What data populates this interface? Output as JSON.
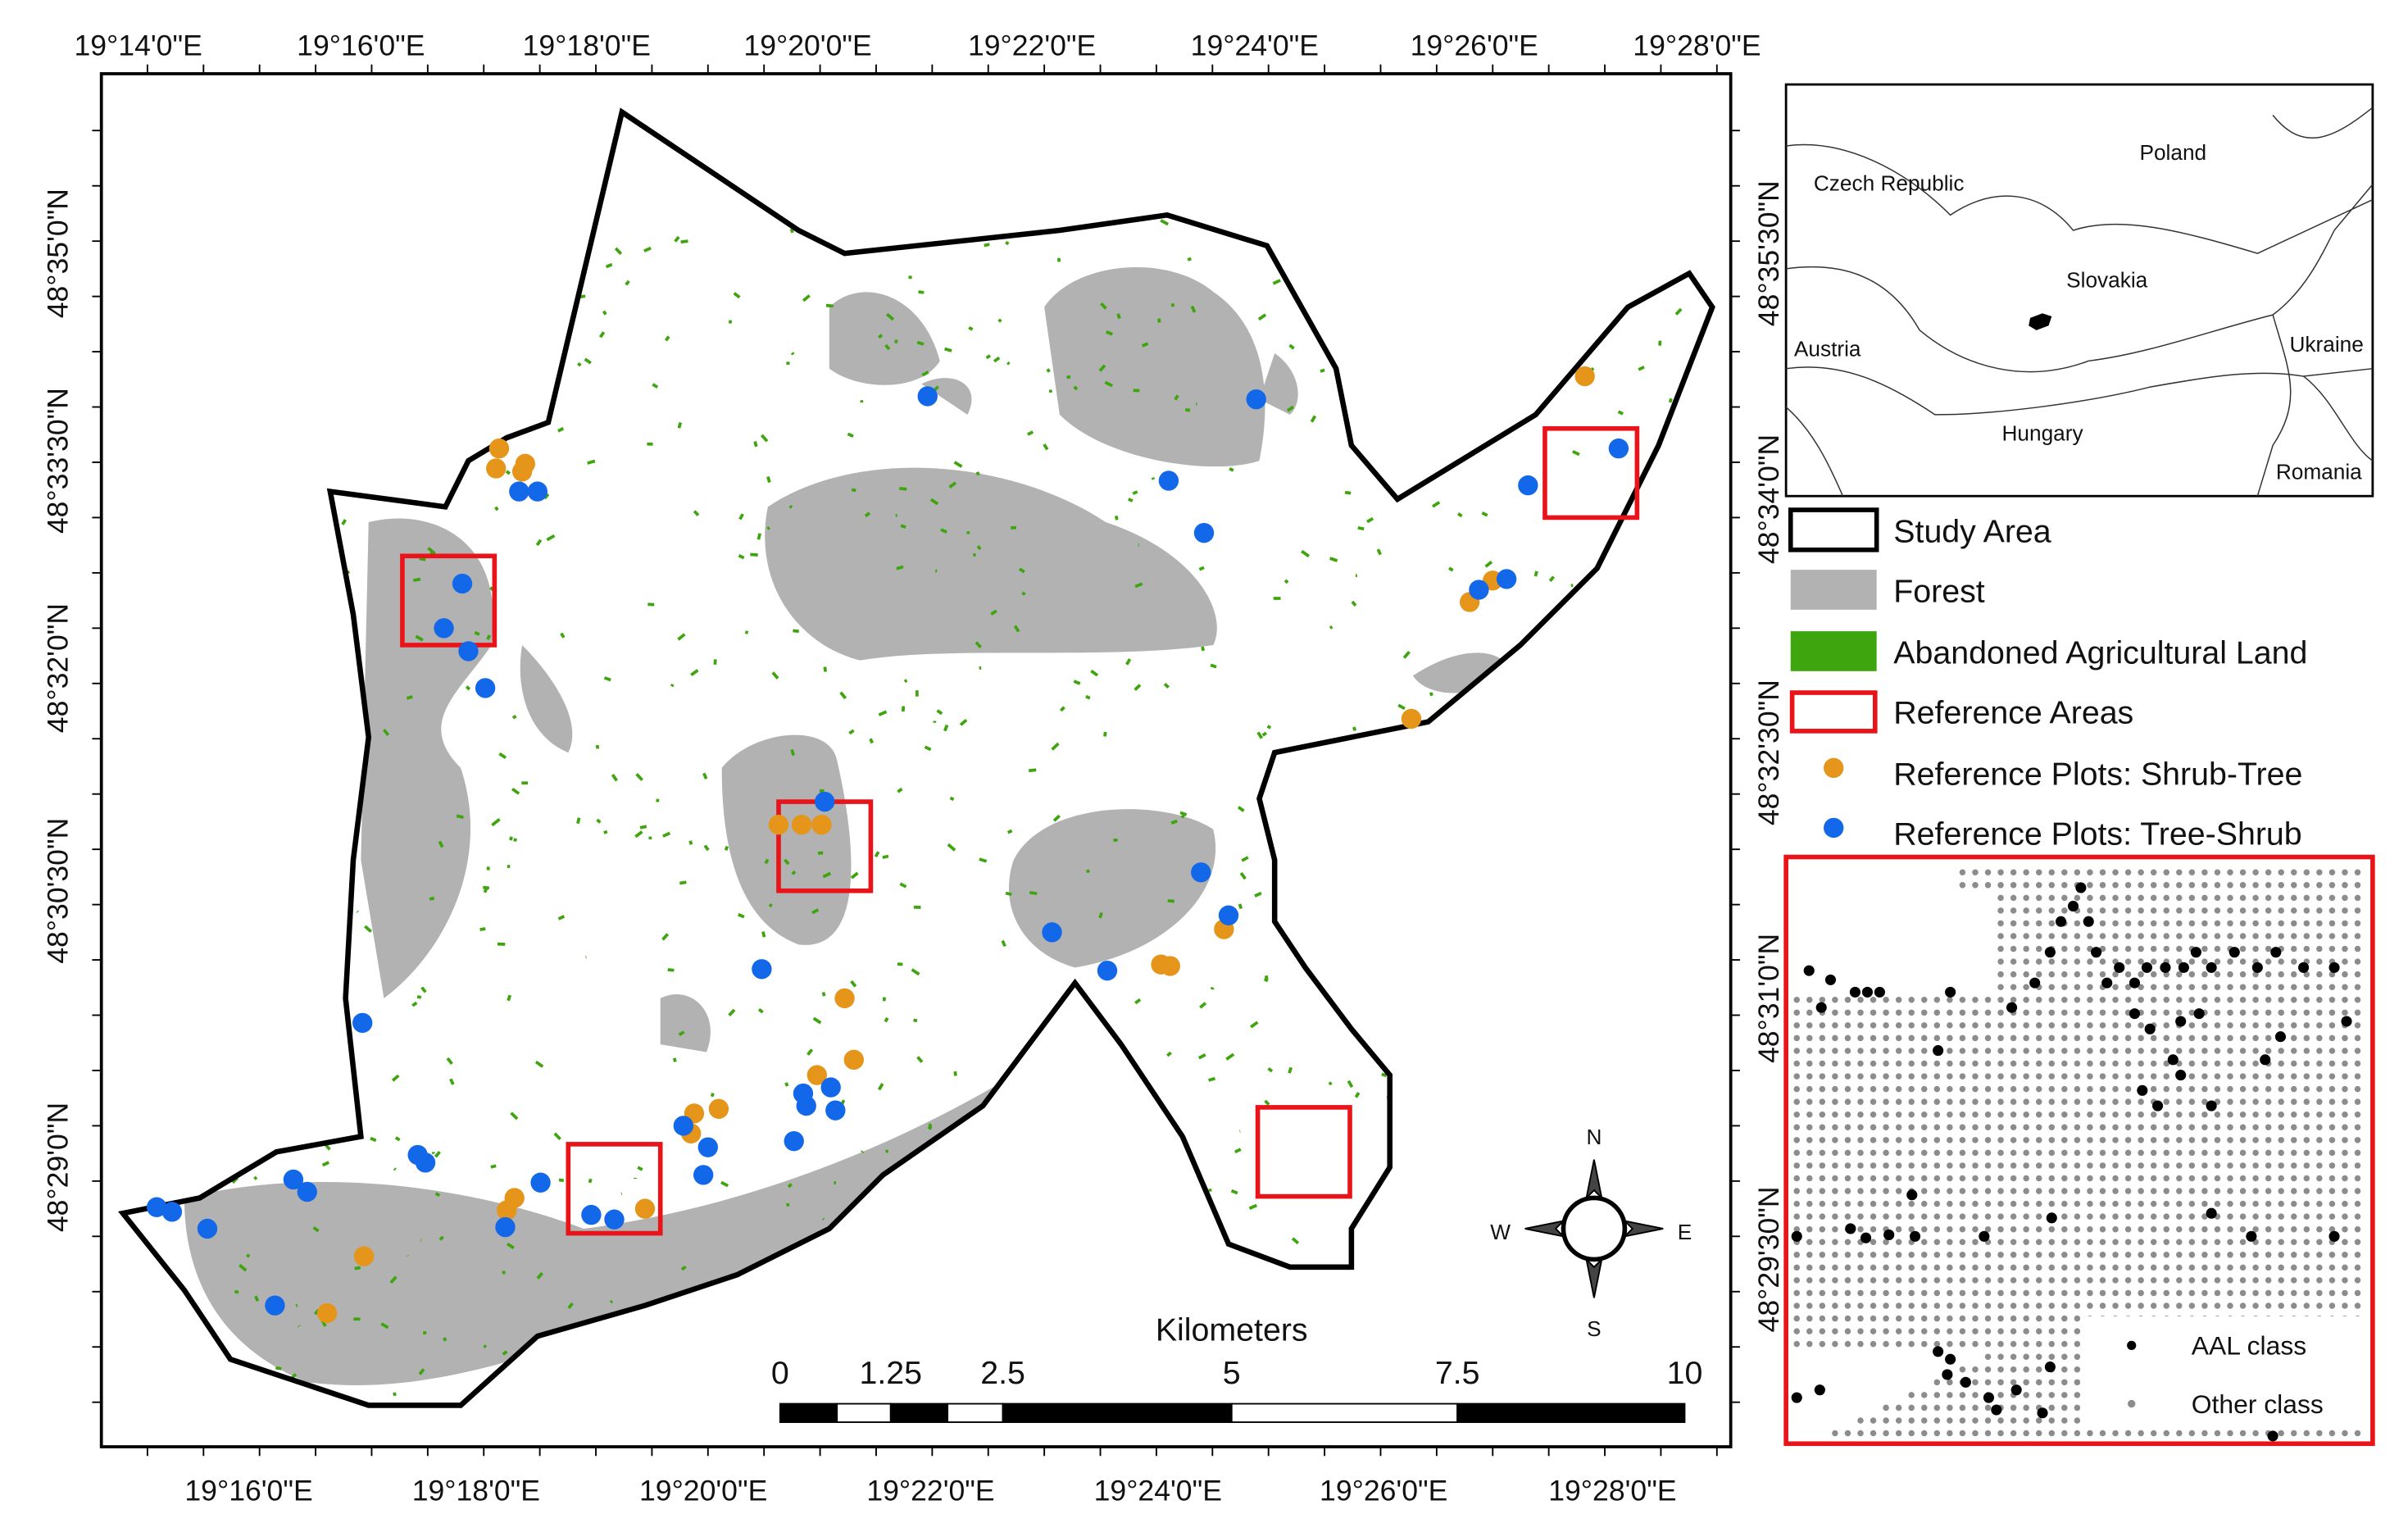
{
  "top_labels": [
    "19°14'0\"E",
    "19°16'0\"E",
    "19°18'0\"E",
    "19°20'0\"E",
    "19°22'0\"E",
    "19°24'0\"E",
    "19°26'0\"E",
    "19°28'0\"E"
  ],
  "bottom_labels": [
    "19°16'0\"E",
    "19°18'0\"E",
    "19°20'0\"E",
    "19°22'0\"E",
    "19°24'0\"E",
    "19°26'0\"E",
    "19°28'0\"E"
  ],
  "left_labels": [
    "48°35'0\"N",
    "48°33'30\"N",
    "48°32'0\"N",
    "48°30'30\"N",
    "48°29'0\"N"
  ],
  "right_labels": [
    "48°35'30\"N",
    "48°34'0\"N",
    "48°32'30\"N",
    "48°31'0\"N",
    "48°29'30\"N"
  ],
  "inset": {
    "labels": [
      "Poland",
      "Czech Republic",
      "Slovakia",
      "Austria",
      "Ukraine",
      "Hungary",
      "Romania"
    ]
  },
  "legend": [
    "Study Area",
    "Forest",
    "Abandoned Agricultural Land",
    "Reference Areas",
    "Reference Plots: Shrub-Tree",
    "Reference Plots: Tree-Shrub"
  ],
  "scale_bar": {
    "title": "Kilometers",
    "labels": [
      "0",
      "1.25",
      "2.5",
      "5",
      "7.5",
      "10"
    ]
  },
  "compass": {
    "north": "N",
    "east": "E",
    "south": "S",
    "west": "W"
  },
  "detail_legend": [
    "AAL class",
    "Other class"
  ]
}
